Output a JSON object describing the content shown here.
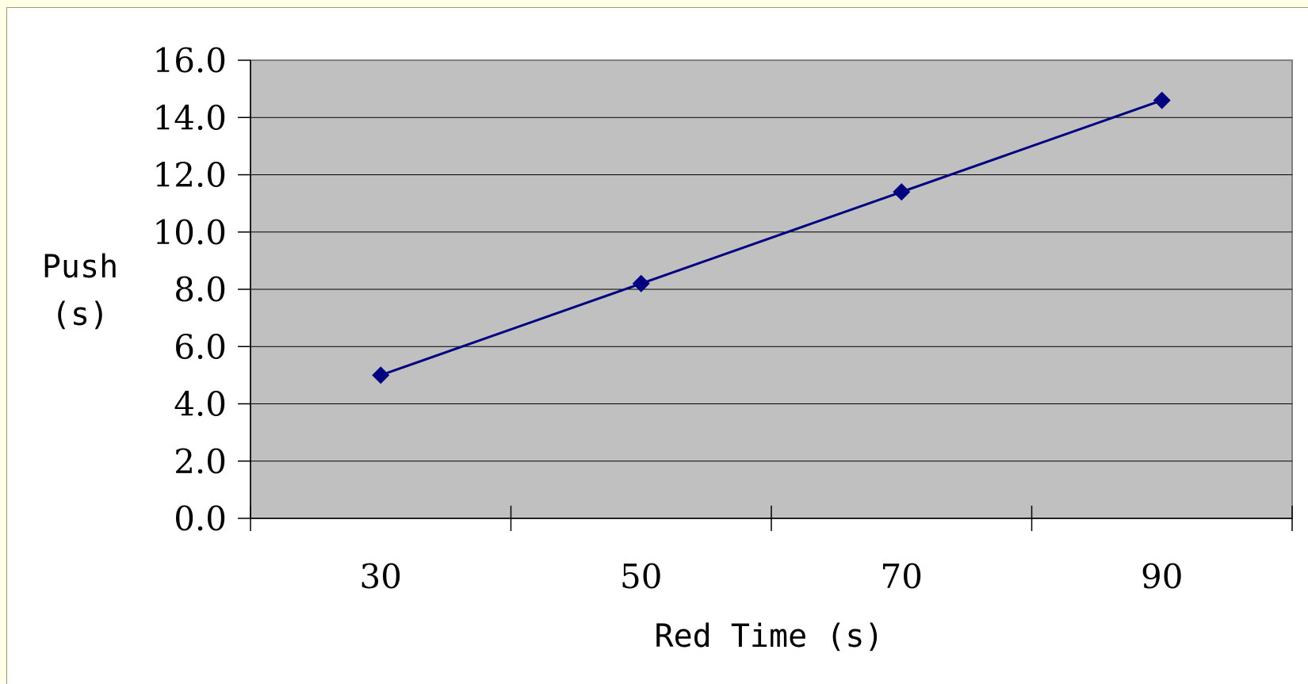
{
  "chart_data": {
    "type": "line",
    "categories": [
      "30",
      "50",
      "70",
      "90"
    ],
    "series": [
      {
        "values": [
          5.0,
          8.2,
          11.4,
          14.6
        ]
      }
    ],
    "title": "",
    "xlabel": "Red Time (s)",
    "ylabel_lines": [
      "Push",
      "(s)"
    ],
    "ylim": [
      0,
      16
    ],
    "y_ticks": [
      "0.0",
      "2.0",
      "4.0",
      "6.0",
      "8.0",
      "10.0",
      "12.0",
      "14.0",
      "16.0"
    ],
    "grid": true,
    "legend": "none",
    "colors": {
      "line": "#000080",
      "marker": "#000080",
      "plot_background": "#c0c0c0",
      "grid": "#000000",
      "frame_background": "#ffffe6"
    },
    "marker": "diamond"
  }
}
